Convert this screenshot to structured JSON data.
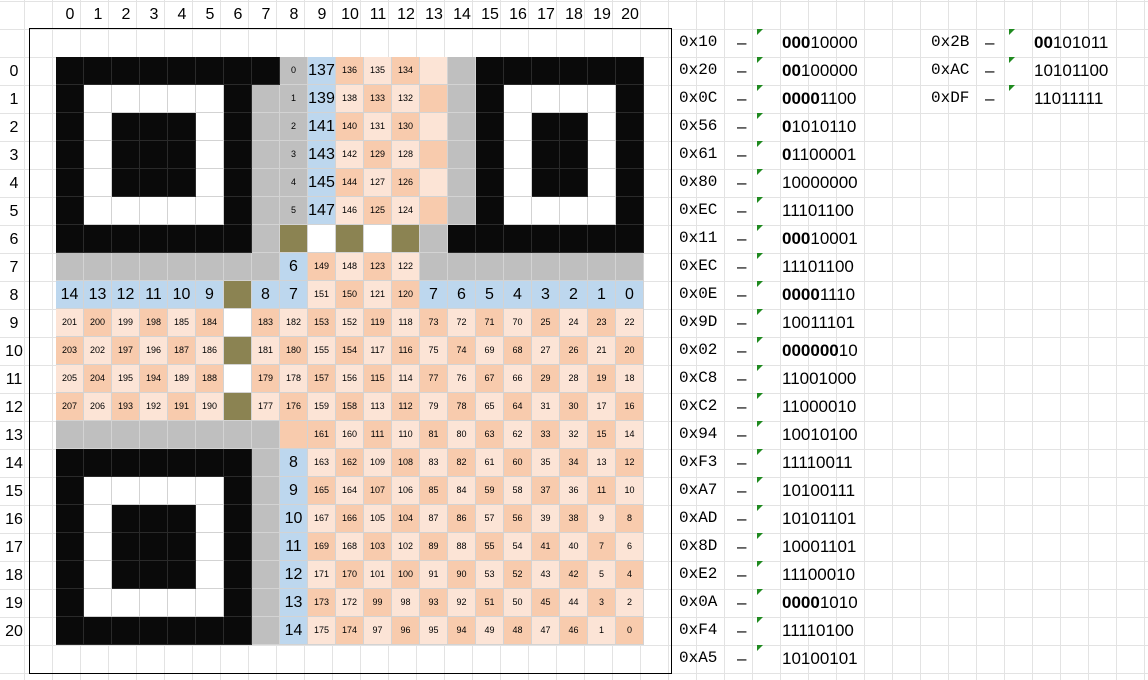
{
  "column_numbers": [
    "0",
    "1",
    "2",
    "3",
    "4",
    "5",
    "6",
    "7",
    "8",
    "9",
    "10",
    "11",
    "12",
    "13",
    "14",
    "15",
    "16",
    "17",
    "18",
    "19",
    "20"
  ],
  "row_numbers": [
    "0",
    "1",
    "2",
    "3",
    "4",
    "5",
    "6",
    "7",
    "8",
    "9",
    "10",
    "11",
    "12",
    "13",
    "14",
    "15",
    "16",
    "17",
    "18",
    "19",
    "20"
  ],
  "colors": {
    "black": "#0a0a0a",
    "white": "#ffffff",
    "gray": "#bfbfbf",
    "olive": "#8b8352",
    "blue": "#bdd7ee",
    "peach": "#f8cbad",
    "pale": "#fce4d6"
  },
  "grid_rows": [
    "KKKKKKKKFSppppFKKKKKK",
    "KWWWWWKFFSppppFKWWWWK",
    "KWKKKWKFFSppppFKWKKWK",
    "KWKKKWKFFSppppFKWKKWK",
    "KWKKKWKFFSppppFKWKKWK",
    "KWWWWWKFFSppppFKWWWWK",
    "KKKKKKKFOWOWOFKKKKKKK",
    "FFFFFFFFSppppFFFFFFFF",
    "BBBBBBOBBppppBBBBBBBB",
    "ppppppWpppppppppppppp",
    "ppppppOpppppppppppppp",
    "ppppppWpppppppppppppp",
    "ppppppOpppppppppppppp",
    "FFFFFFFFQpppppppppppp",
    "KKKKKKKFSpppppppppppp",
    "KWWWWWKFSpppppppppppp",
    "KWKKKWKFSpppppppppppp",
    "KWKKKWKFSpppppppppppp",
    "KWKKKWKFSpppppppppppp",
    "KWWWWWKFSpppppppppppp",
    "KKKKKKKFSpppppppppppp"
  ],
  "cell_labels": [
    [
      "",
      "",
      "",
      "",
      "",
      "",
      "",
      "",
      "0",
      "137",
      "136",
      "135",
      "134",
      "",
      "",
      "",
      "",
      "",
      "",
      "",
      ""
    ],
    [
      "",
      "",
      "",
      "",
      "",
      "",
      "",
      "",
      "1",
      "139",
      "138",
      "133",
      "132",
      "",
      "",
      "",
      "",
      "",
      "",
      "",
      ""
    ],
    [
      "",
      "",
      "",
      "",
      "",
      "",
      "",
      "",
      "2",
      "141",
      "140",
      "131",
      "130",
      "",
      "",
      "",
      "",
      "",
      "",
      "",
      ""
    ],
    [
      "",
      "",
      "",
      "",
      "",
      "",
      "",
      "",
      "3",
      "143",
      "142",
      "129",
      "128",
      "",
      "",
      "",
      "",
      "",
      "",
      "",
      ""
    ],
    [
      "",
      "",
      "",
      "",
      "",
      "",
      "",
      "",
      "4",
      "145",
      "144",
      "127",
      "126",
      "",
      "",
      "",
      "",
      "",
      "",
      "",
      ""
    ],
    [
      "",
      "",
      "",
      "",
      "",
      "",
      "",
      "",
      "5",
      "147",
      "146",
      "125",
      "124",
      "",
      "",
      "",
      "",
      "",
      "",
      "",
      ""
    ],
    [
      "",
      "",
      "",
      "",
      "",
      "",
      "",
      "",
      "",
      "",
      "",
      "",
      "",
      "",
      "",
      "",
      "",
      "",
      "",
      "",
      ""
    ],
    [
      "",
      "",
      "",
      "",
      "",
      "",
      "",
      "",
      "6",
      "149",
      "148",
      "123",
      "122",
      "",
      "",
      "",
      "",
      "",
      "",
      "",
      ""
    ],
    [
      "14",
      "13",
      "12",
      "11",
      "10",
      "9",
      "",
      "8",
      "7",
      "151",
      "150",
      "121",
      "120",
      "7",
      "6",
      "5",
      "4",
      "3",
      "2",
      "1",
      "0"
    ],
    [
      "201",
      "200",
      "199",
      "198",
      "185",
      "184",
      "",
      "183",
      "182",
      "153",
      "152",
      "119",
      "118",
      "73",
      "72",
      "71",
      "70",
      "25",
      "24",
      "23",
      "22"
    ],
    [
      "203",
      "202",
      "197",
      "196",
      "187",
      "186",
      "",
      "181",
      "180",
      "155",
      "154",
      "117",
      "116",
      "75",
      "74",
      "69",
      "68",
      "27",
      "26",
      "21",
      "20"
    ],
    [
      "205",
      "204",
      "195",
      "194",
      "189",
      "188",
      "",
      "179",
      "178",
      "157",
      "156",
      "115",
      "114",
      "77",
      "76",
      "67",
      "66",
      "29",
      "28",
      "19",
      "18"
    ],
    [
      "207",
      "206",
      "193",
      "192",
      "191",
      "190",
      "",
      "177",
      "176",
      "159",
      "158",
      "113",
      "112",
      "79",
      "78",
      "65",
      "64",
      "31",
      "30",
      "17",
      "16"
    ],
    [
      "",
      "",
      "",
      "",
      "",
      "",
      "",
      "",
      "",
      "161",
      "160",
      "111",
      "110",
      "81",
      "80",
      "63",
      "62",
      "33",
      "32",
      "15",
      "14"
    ],
    [
      "",
      "",
      "",
      "",
      "",
      "",
      "",
      "",
      "8",
      "163",
      "162",
      "109",
      "108",
      "83",
      "82",
      "61",
      "60",
      "35",
      "34",
      "13",
      "12"
    ],
    [
      "",
      "",
      "",
      "",
      "",
      "",
      "",
      "",
      "9",
      "165",
      "164",
      "107",
      "106",
      "85",
      "84",
      "59",
      "58",
      "37",
      "36",
      "11",
      "10"
    ],
    [
      "",
      "",
      "",
      "",
      "",
      "",
      "",
      "",
      "10",
      "167",
      "166",
      "105",
      "104",
      "87",
      "86",
      "57",
      "56",
      "39",
      "38",
      "9",
      "8"
    ],
    [
      "",
      "",
      "",
      "",
      "",
      "",
      "",
      "",
      "11",
      "169",
      "168",
      "103",
      "102",
      "89",
      "88",
      "55",
      "54",
      "41",
      "40",
      "7",
      "6"
    ],
    [
      "",
      "",
      "",
      "",
      "",
      "",
      "",
      "",
      "12",
      "171",
      "170",
      "101",
      "100",
      "91",
      "90",
      "53",
      "52",
      "43",
      "42",
      "5",
      "4"
    ],
    [
      "",
      "",
      "",
      "",
      "",
      "",
      "",
      "",
      "13",
      "173",
      "172",
      "99",
      "98",
      "93",
      "92",
      "51",
      "50",
      "45",
      "44",
      "3",
      "2"
    ],
    [
      "",
      "",
      "",
      "",
      "",
      "",
      "",
      "",
      "14",
      "175",
      "174",
      "97",
      "96",
      "95",
      "94",
      "49",
      "48",
      "47",
      "46",
      "1",
      "0"
    ]
  ],
  "byte_list_1": [
    {
      "hex": "0x10",
      "dash": "–",
      "bold": "000",
      "rest": "10000"
    },
    {
      "hex": "0x20",
      "dash": "–",
      "bold": "00",
      "rest": "100000"
    },
    {
      "hex": "0x0C",
      "dash": "–",
      "bold": "0000",
      "rest": "1100"
    },
    {
      "hex": "0x56",
      "dash": "–",
      "bold": "0",
      "rest": "1010110"
    },
    {
      "hex": "0x61",
      "dash": "–",
      "bold": "0",
      "rest": "1100001"
    },
    {
      "hex": "0x80",
      "dash": "–",
      "bold": "",
      "rest": "10000000"
    },
    {
      "hex": "0xEC",
      "dash": "–",
      "bold": "",
      "rest": "11101100"
    },
    {
      "hex": "0x11",
      "dash": "–",
      "bold": "000",
      "rest": "10001"
    },
    {
      "hex": "0xEC",
      "dash": "–",
      "bold": "",
      "rest": "11101100"
    },
    {
      "hex": "0x0E",
      "dash": "–",
      "bold": "0000",
      "rest": "1110"
    },
    {
      "hex": "0x9D",
      "dash": "–",
      "bold": "",
      "rest": "10011101"
    },
    {
      "hex": "0x02",
      "dash": "–",
      "bold": "000000",
      "rest": "10"
    },
    {
      "hex": "0xC8",
      "dash": "–",
      "bold": "",
      "rest": "11001000"
    },
    {
      "hex": "0xC2",
      "dash": "–",
      "bold": "",
      "rest": "11000010"
    },
    {
      "hex": "0x94",
      "dash": "–",
      "bold": "",
      "rest": "10010100"
    },
    {
      "hex": "0xF3",
      "dash": "–",
      "bold": "",
      "rest": "11110011"
    },
    {
      "hex": "0xA7",
      "dash": "–",
      "bold": "",
      "rest": "10100111"
    },
    {
      "hex": "0xAD",
      "dash": "–",
      "bold": "",
      "rest": "10101101"
    },
    {
      "hex": "0x8D",
      "dash": "–",
      "bold": "",
      "rest": "10001101"
    },
    {
      "hex": "0xE2",
      "dash": "–",
      "bold": "",
      "rest": "11100010"
    },
    {
      "hex": "0x0A",
      "dash": "–",
      "bold": "0000",
      "rest": "1010"
    },
    {
      "hex": "0xF4",
      "dash": "–",
      "bold": "",
      "rest": "11110100"
    },
    {
      "hex": "0xA5",
      "dash": "–",
      "bold": "",
      "rest": "10100101"
    }
  ],
  "byte_list_2": [
    {
      "hex": "0x2B",
      "dash": "–",
      "bold": "00",
      "rest": "101011"
    },
    {
      "hex": "0xAC",
      "dash": "–",
      "bold": "",
      "rest": "10101100"
    },
    {
      "hex": "0xDF",
      "dash": "–",
      "bold": "",
      "rest": "11011111"
    }
  ]
}
